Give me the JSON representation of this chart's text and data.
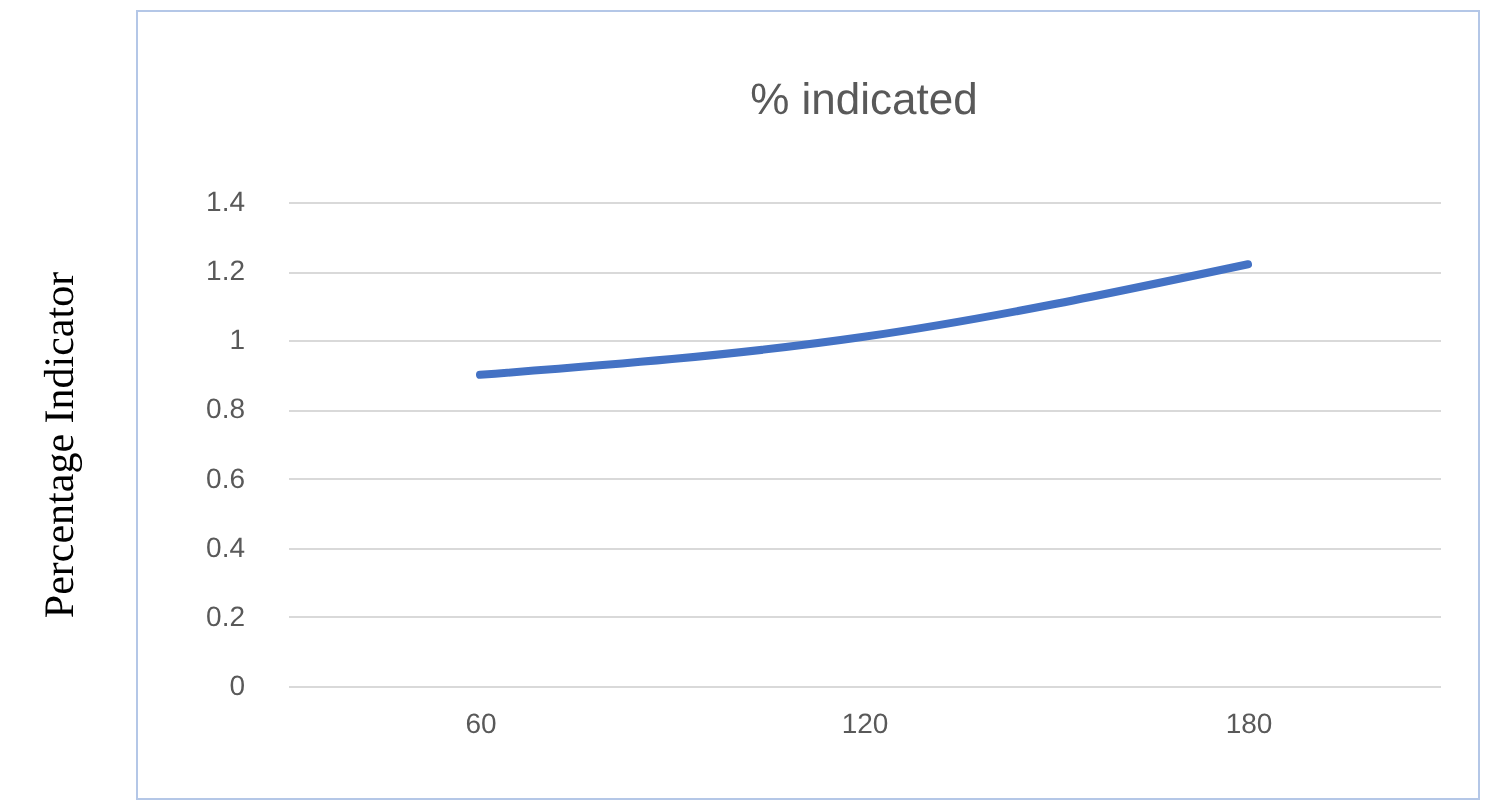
{
  "chart_data": {
    "type": "line",
    "title": "% indicated",
    "ylabel": "Percentage Indicator",
    "categories": [
      "60",
      "120",
      "180"
    ],
    "series": [
      {
        "color": "#4472c4",
        "values": [
          0.9,
          1.01,
          1.22
        ]
      }
    ],
    "ylim": [
      0,
      1.4
    ],
    "yticks": [
      0,
      0.2,
      0.4,
      0.6,
      0.8,
      1,
      1.2,
      1.4
    ],
    "grid": "y"
  }
}
